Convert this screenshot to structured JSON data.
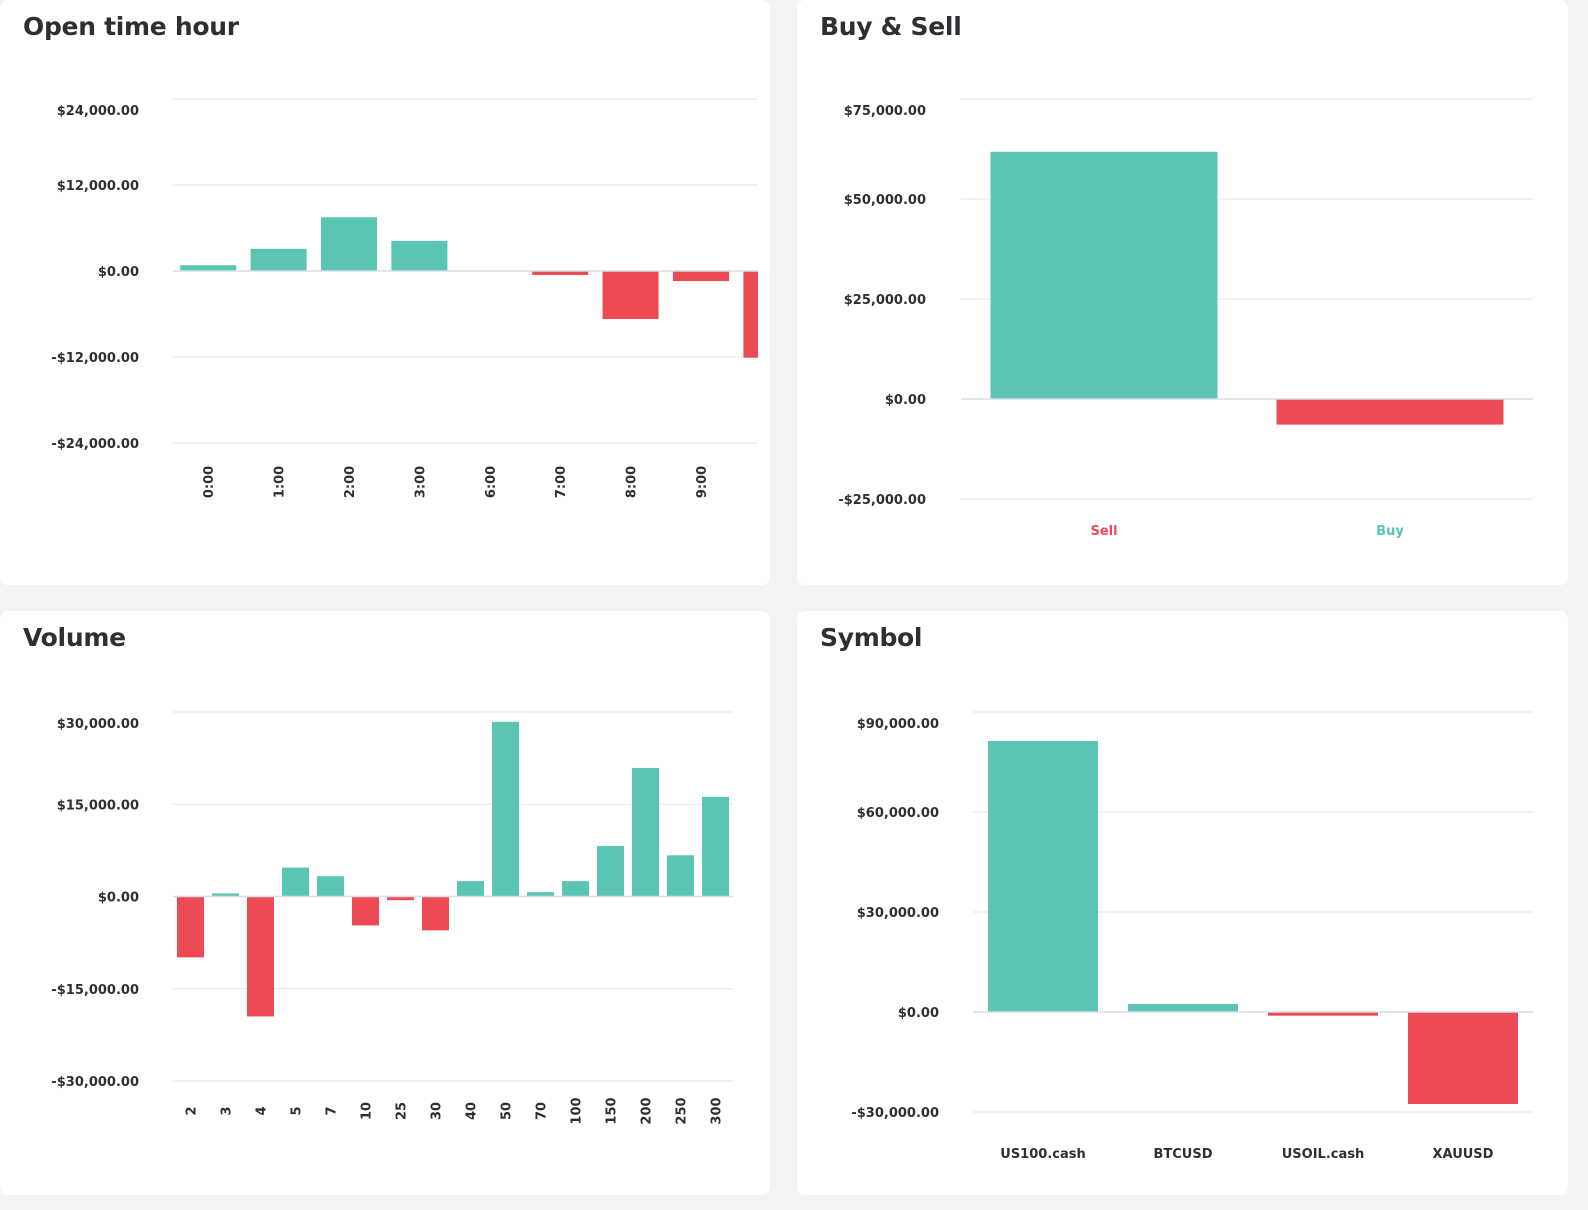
{
  "colors": {
    "positive": "#5bc5b4",
    "negative": "#ec4b53",
    "grid": "#e6e6e6",
    "text": "#2f2f33",
    "background": "#f3f3f3"
  },
  "chart_data": [
    {
      "type": "bar",
      "title": "Open time hour",
      "categories": [
        "0:00",
        "1:00",
        "2:00",
        "3:00",
        "6:00",
        "7:00",
        "8:00",
        "9:00",
        ""
      ],
      "values": [
        800,
        3100,
        7500,
        4200,
        50,
        -550,
        -6700,
        -1400,
        -12100
      ],
      "ylim": [
        -24000,
        24000
      ],
      "yticks": [
        24000,
        12000,
        0,
        -12000,
        -24000
      ],
      "ytick_labels": [
        "$24,000.00",
        "$12,000.00",
        "$0.00",
        "-$12,000.00",
        "-$24,000.00"
      ],
      "grid": true,
      "xlabel_rotation": "vertical"
    },
    {
      "type": "bar",
      "title": "Buy & Sell",
      "categories": [
        "Sell",
        "Buy"
      ],
      "category_colors": [
        "#ec4b53",
        "#5bc5b4"
      ],
      "values": [
        61800,
        -6400
      ],
      "ylim": [
        -25000,
        75000
      ],
      "yticks": [
        75000,
        50000,
        25000,
        0,
        -25000
      ],
      "ytick_labels": [
        "$75,000.00",
        "$50,000.00",
        "$25,000.00",
        "$0.00",
        "-$25,000.00"
      ],
      "grid": true,
      "xlabel_rotation": "horizontal"
    },
    {
      "type": "bar",
      "title": "Volume",
      "categories": [
        "2",
        "3",
        "4",
        "5",
        "7",
        "10",
        "25",
        "30",
        "40",
        "50",
        "70",
        "100",
        "150",
        "200",
        "250",
        "300"
      ],
      "values": [
        -9900,
        500,
        -19500,
        4700,
        3300,
        -4700,
        -600,
        -5500,
        2500,
        28400,
        700,
        2500,
        8200,
        20900,
        6700,
        16200
      ],
      "ylim": [
        -30000,
        30000
      ],
      "yticks": [
        30000,
        15000,
        0,
        -15000,
        -30000
      ],
      "ytick_labels": [
        "$30,000.00",
        "$15,000.00",
        "$0.00",
        "-$15,000.00",
        "-$30,000.00"
      ],
      "grid": true,
      "xlabel_rotation": "vertical"
    },
    {
      "type": "bar",
      "title": "Symbol",
      "categories": [
        "US100.cash",
        "BTCUSD",
        "USOIL.cash",
        "XAUUSD"
      ],
      "values": [
        81300,
        2400,
        -1100,
        -27600
      ],
      "ylim": [
        -30000,
        90000
      ],
      "yticks": [
        90000,
        60000,
        30000,
        0,
        -30000
      ],
      "ytick_labels": [
        "$90,000.00",
        "$60,000.00",
        "$30,000.00",
        "$0.00",
        "-$30,000.00"
      ],
      "grid": true,
      "xlabel_rotation": "horizontal"
    }
  ]
}
